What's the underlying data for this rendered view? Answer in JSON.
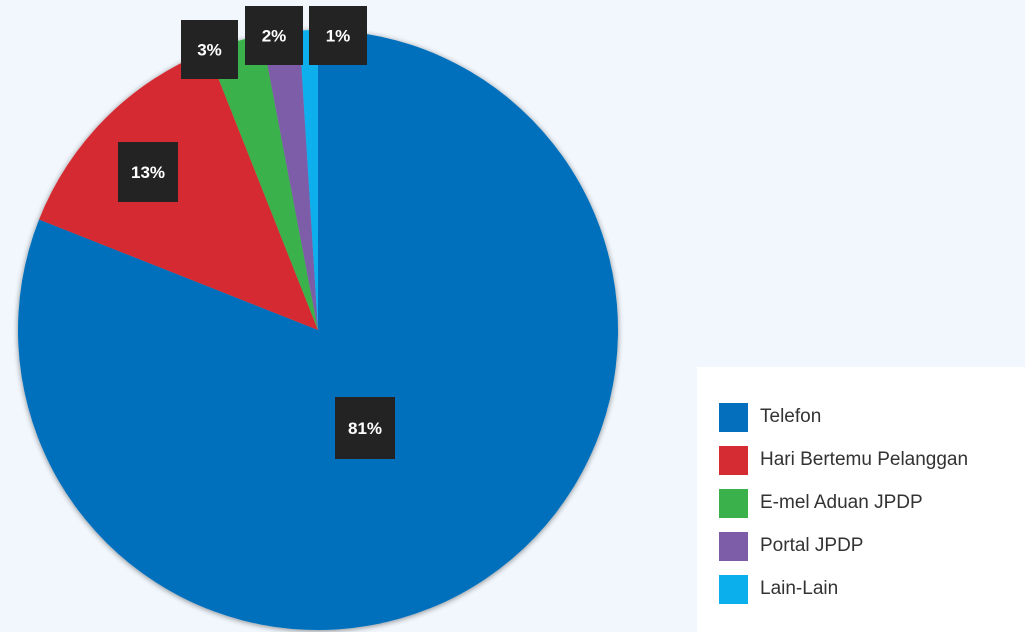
{
  "chart_data": {
    "type": "pie",
    "start": "top, clockwise",
    "series": [
      {
        "name": "Telefon",
        "value": 81,
        "label": "81%",
        "color": "#0470bd"
      },
      {
        "name": "Hari Bertemu Pelanggan",
        "value": 13,
        "label": "13%",
        "color": "#d52b32"
      },
      {
        "name": "E-mel Aduan JPDP",
        "value": 3,
        "label": "3%",
        "color": "#3ab14b"
      },
      {
        "name": "Portal JPDP",
        "value": 2,
        "label": "2%",
        "color": "#7d5ca8"
      },
      {
        "name": "Lain-Lain",
        "value": 1,
        "label": "1%",
        "color": "#0aafec"
      }
    ],
    "legend_position": "bottom-right",
    "label_style": {
      "background": "#232323",
      "color": "#ffffff"
    }
  }
}
